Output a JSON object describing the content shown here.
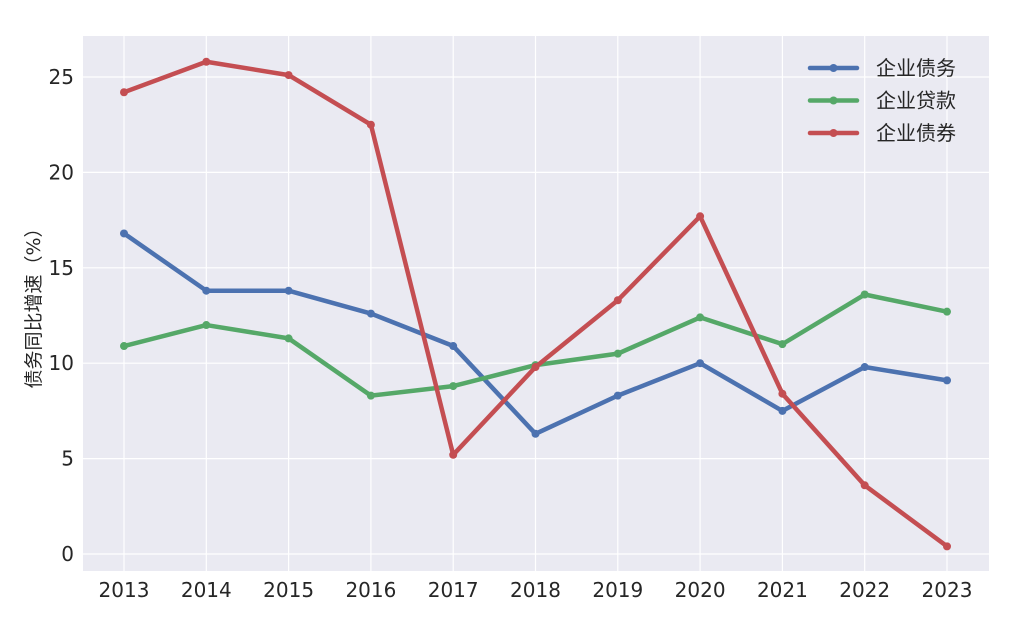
{
  "chart_data": {
    "type": "line",
    "title": "",
    "xlabel": "",
    "ylabel": "债务同比增速（%）",
    "x": [
      "2013",
      "2014",
      "2015",
      "2016",
      "2017",
      "2018",
      "2019",
      "2020",
      "2021",
      "2022",
      "2023"
    ],
    "yticks": [
      0,
      5,
      10,
      15,
      20,
      25
    ],
    "ylim": [
      -0.9,
      27.2
    ],
    "grid": true,
    "legend_position": "top-right",
    "series": [
      {
        "name": "企业债务",
        "color": "#4c72b0",
        "values": [
          16.8,
          13.8,
          13.8,
          12.6,
          10.9,
          6.3,
          8.3,
          10.0,
          7.5,
          9.8,
          9.1
        ]
      },
      {
        "name": "企业贷款",
        "color": "#55a868",
        "values": [
          10.9,
          12.0,
          11.3,
          8.3,
          8.8,
          9.9,
          10.5,
          12.4,
          11.0,
          13.6,
          12.7
        ]
      },
      {
        "name": "企业债券",
        "color": "#c44e52",
        "values": [
          24.2,
          25.8,
          25.1,
          22.5,
          5.2,
          9.8,
          13.3,
          17.7,
          8.4,
          3.6,
          0.4
        ]
      }
    ]
  }
}
